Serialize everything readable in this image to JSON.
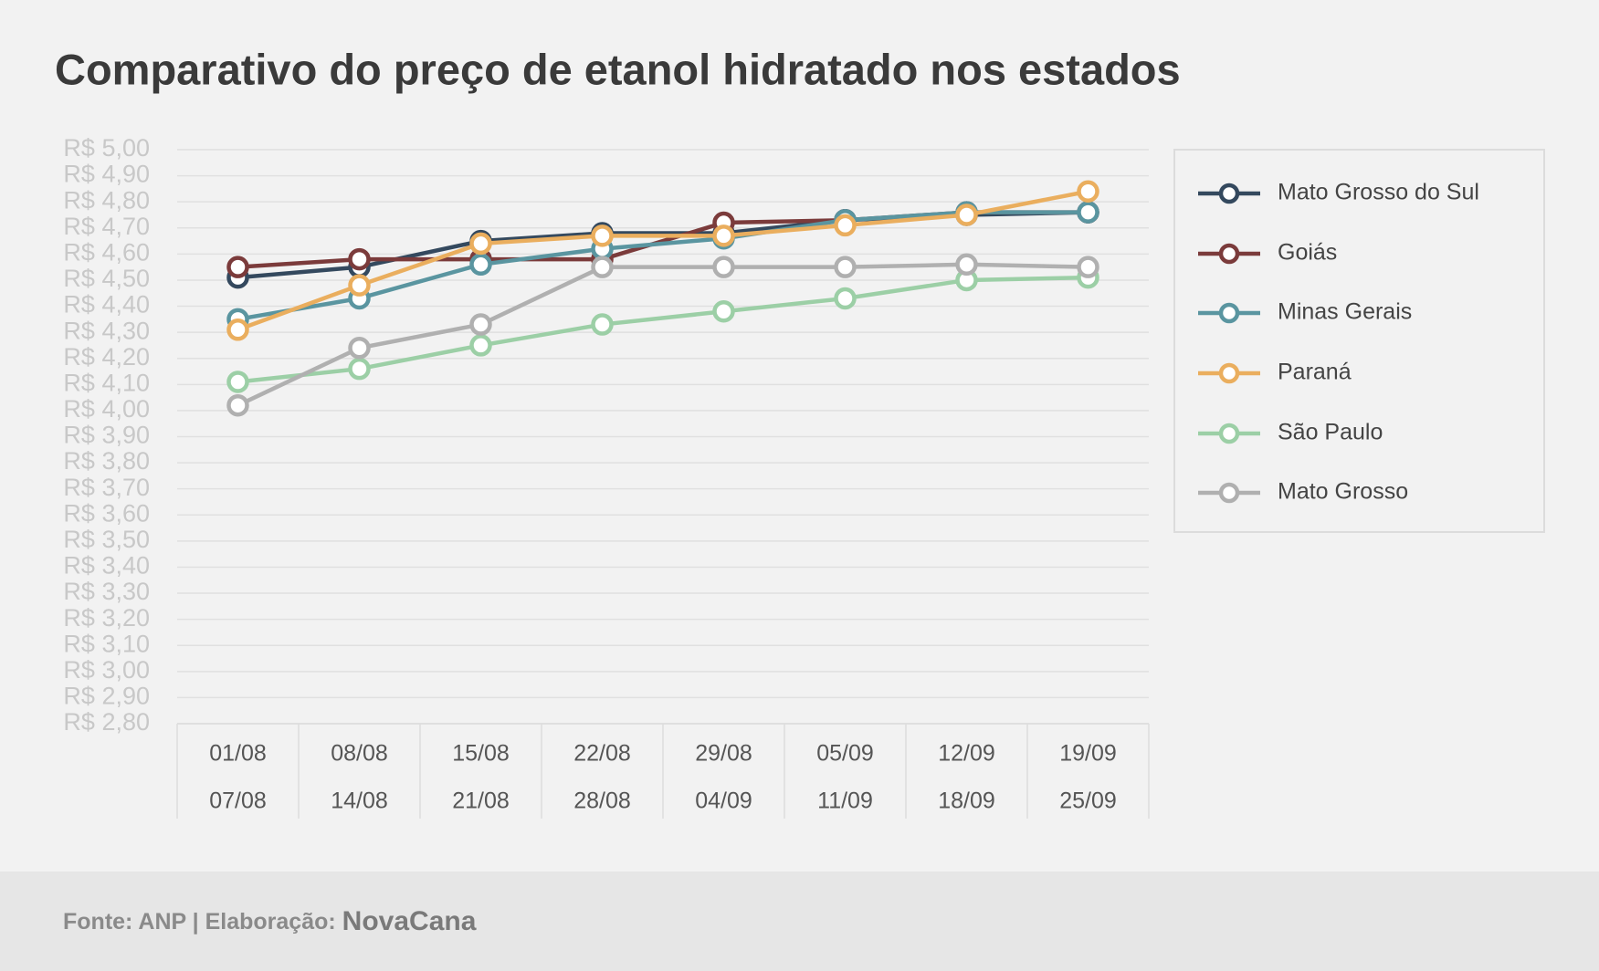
{
  "chart_data": {
    "type": "line",
    "title": "Comparativo do preço de etanol hidratado nos estados",
    "categories": [
      [
        "01/08",
        "07/08"
      ],
      [
        "08/08",
        "14/08"
      ],
      [
        "15/08",
        "21/08"
      ],
      [
        "22/08",
        "28/08"
      ],
      [
        "29/08",
        "04/09"
      ],
      [
        "05/09",
        "11/09"
      ],
      [
        "12/09",
        "18/09"
      ],
      [
        "19/09",
        "25/09"
      ]
    ],
    "series": [
      {
        "name": "Mato Grosso do Sul",
        "color": "#34495e",
        "values": [
          4.51,
          4.55,
          4.65,
          4.68,
          4.68,
          4.73,
          4.75,
          4.76
        ]
      },
      {
        "name": "Goiás",
        "color": "#7b3b3b",
        "values": [
          4.55,
          4.58,
          4.58,
          4.58,
          4.72,
          4.73,
          4.76,
          4.76
        ]
      },
      {
        "name": "Minas Gerais",
        "color": "#5a95a0",
        "values": [
          4.35,
          4.43,
          4.56,
          4.62,
          4.66,
          4.73,
          4.76,
          4.76
        ]
      },
      {
        "name": "Paraná",
        "color": "#eaae5e",
        "values": [
          4.31,
          4.48,
          4.64,
          4.67,
          4.67,
          4.71,
          4.75,
          4.84
        ]
      },
      {
        "name": "São Paulo",
        "color": "#9ccfa6",
        "values": [
          4.11,
          4.16,
          4.25,
          4.33,
          4.38,
          4.43,
          4.5,
          4.51
        ]
      },
      {
        "name": "Mato Grosso",
        "color": "#b0b0b0",
        "values": [
          4.02,
          4.24,
          4.33,
          4.55,
          4.55,
          4.55,
          4.56,
          4.55
        ]
      }
    ],
    "ylim": [
      2.8,
      5.0
    ],
    "yticks": [
      {
        "value": 2.8,
        "label": "R$ 2,80"
      },
      {
        "value": 2.9,
        "label": "R$ 2,90"
      },
      {
        "value": 3.0,
        "label": "R$ 3,00"
      },
      {
        "value": 3.1,
        "label": "R$ 3,10"
      },
      {
        "value": 3.2,
        "label": "R$ 3,20"
      },
      {
        "value": 3.3,
        "label": "R$ 3,30"
      },
      {
        "value": 3.4,
        "label": "R$ 3,40"
      },
      {
        "value": 3.5,
        "label": "R$ 3,50"
      },
      {
        "value": 3.6,
        "label": "R$ 3,60"
      },
      {
        "value": 3.7,
        "label": "R$ 3,70"
      },
      {
        "value": 3.8,
        "label": "R$ 3,80"
      },
      {
        "value": 3.9,
        "label": "R$ 3,90"
      },
      {
        "value": 4.0,
        "label": "R$ 4,00"
      },
      {
        "value": 4.1,
        "label": "R$ 4,10"
      },
      {
        "value": 4.2,
        "label": "R$ 4,20"
      },
      {
        "value": 4.3,
        "label": "R$ 4,30"
      },
      {
        "value": 4.4,
        "label": "R$ 4,40"
      },
      {
        "value": 4.5,
        "label": "R$ 4,50"
      },
      {
        "value": 4.6,
        "label": "R$ 4,60"
      },
      {
        "value": 4.7,
        "label": "R$ 4,70"
      },
      {
        "value": 4.8,
        "label": "R$ 4,80"
      },
      {
        "value": 4.9,
        "label": "R$ 4,90"
      },
      {
        "value": 5.0,
        "label": "R$ 5,00"
      }
    ],
    "grid": true,
    "legend": "right",
    "source": "Fonte: ANP | Elaboração:",
    "brand": "NovaCana"
  }
}
